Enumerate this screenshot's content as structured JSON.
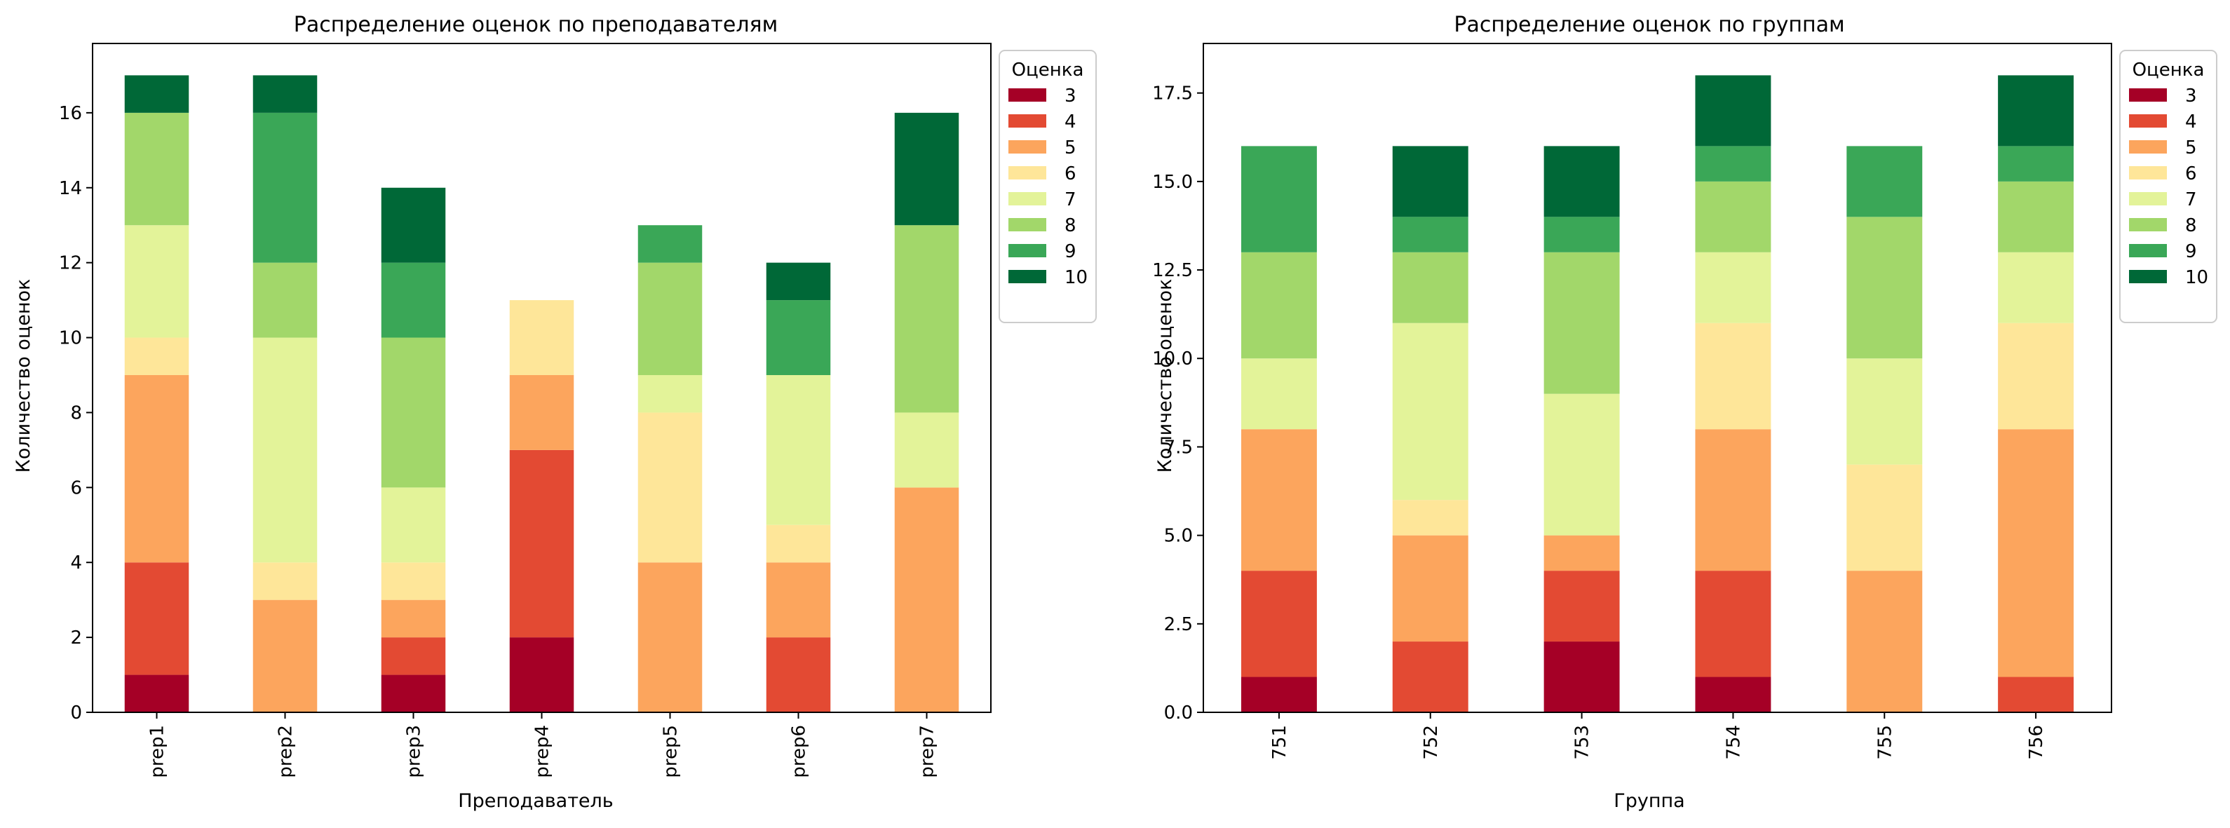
{
  "chart_data": [
    {
      "type": "bar",
      "stacked": true,
      "title": "Распределение оценок по преподавателям",
      "xlabel": "Преподаватель",
      "ylabel": "Количество оценок",
      "ylim": [
        0,
        17.85
      ],
      "yticks": [
        "0",
        "2",
        "4",
        "6",
        "8",
        "10",
        "12",
        "14",
        "16"
      ],
      "ytick_values": [
        0,
        2,
        4,
        6,
        8,
        10,
        12,
        14,
        16
      ],
      "categories": [
        "prep1",
        "prep2",
        "prep3",
        "prep4",
        "prep5",
        "prep6",
        "prep7"
      ],
      "legend_title": "Оценка",
      "legend_position": "outside-right-top",
      "series": [
        {
          "name": "3",
          "color": "#a50026",
          "values": [
            1,
            0,
            1,
            2,
            0,
            0,
            0
          ]
        },
        {
          "name": "4",
          "color": "#e34a33",
          "values": [
            3,
            0,
            1,
            5,
            0,
            2,
            0
          ]
        },
        {
          "name": "5",
          "color": "#fca55d",
          "values": [
            5,
            3,
            1,
            2,
            4,
            2,
            6
          ]
        },
        {
          "name": "6",
          "color": "#fee699",
          "values": [
            1,
            1,
            1,
            2,
            4,
            1,
            0
          ]
        },
        {
          "name": "7",
          "color": "#e3f399",
          "values": [
            3,
            6,
            2,
            0,
            1,
            4,
            2
          ]
        },
        {
          "name": "8",
          "color": "#a2d76a",
          "values": [
            3,
            2,
            4,
            0,
            3,
            0,
            5
          ]
        },
        {
          "name": "9",
          "color": "#3aa757",
          "values": [
            0,
            4,
            2,
            0,
            1,
            2,
            0
          ]
        },
        {
          "name": "10",
          "color": "#006837",
          "values": [
            1,
            1,
            2,
            0,
            0,
            1,
            3
          ]
        }
      ]
    },
    {
      "type": "bar",
      "stacked": true,
      "title": "Распределение оценок по группам",
      "xlabel": "Группа",
      "ylabel": "Количество оценок",
      "ylim": [
        0,
        18.9
      ],
      "yticks": [
        "0.0",
        "2.5",
        "5.0",
        "7.5",
        "10.0",
        "12.5",
        "15.0",
        "17.5"
      ],
      "ytick_values": [
        0,
        2.5,
        5,
        7.5,
        10,
        12.5,
        15,
        17.5
      ],
      "categories": [
        "751",
        "752",
        "753",
        "754",
        "755",
        "756"
      ],
      "legend_title": "Оценка",
      "legend_position": "outside-right-top",
      "series": [
        {
          "name": "3",
          "color": "#a50026",
          "values": [
            1,
            0,
            2,
            1,
            0,
            0
          ]
        },
        {
          "name": "4",
          "color": "#e34a33",
          "values": [
            3,
            2,
            2,
            3,
            0,
            1
          ]
        },
        {
          "name": "5",
          "color": "#fca55d",
          "values": [
            4,
            3,
            1,
            4,
            4,
            7
          ]
        },
        {
          "name": "6",
          "color": "#fee699",
          "values": [
            0,
            1,
            0,
            3,
            3,
            3
          ]
        },
        {
          "name": "7",
          "color": "#e3f399",
          "values": [
            2,
            5,
            4,
            2,
            3,
            2
          ]
        },
        {
          "name": "8",
          "color": "#a2d76a",
          "values": [
            3,
            2,
            4,
            2,
            4,
            2
          ]
        },
        {
          "name": "9",
          "color": "#3aa757",
          "values": [
            3,
            1,
            1,
            1,
            2,
            1
          ]
        },
        {
          "name": "10",
          "color": "#006837",
          "values": [
            0,
            2,
            2,
            2,
            0,
            2
          ]
        }
      ]
    }
  ]
}
